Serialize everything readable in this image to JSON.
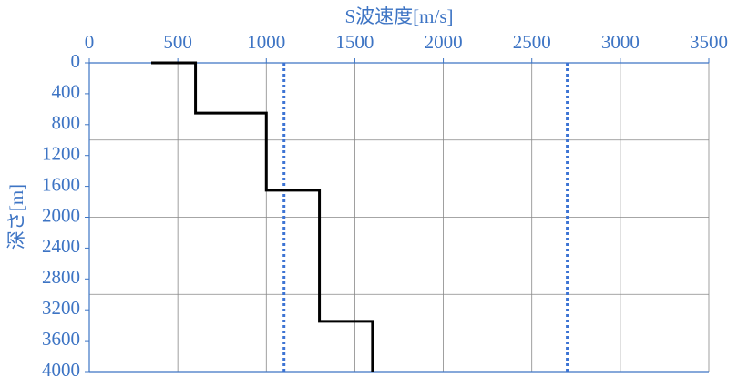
{
  "chart_data": {
    "type": "line",
    "title": "S波速度[m/s]",
    "y_label": "深さ[m]",
    "x": [
      350,
      600,
      600,
      1000,
      1000,
      1300,
      1300,
      1600,
      1600
    ],
    "series": [
      {
        "color": "#000000",
        "values": [
          0,
          0,
          650,
          650,
          1650,
          1650,
          3350,
          3350,
          4000
        ]
      }
    ],
    "xlim": [
      0,
      3500
    ],
    "xticks": [
      0,
      500,
      1000,
      1500,
      2000,
      2500,
      3000,
      3500
    ],
    "ylim": [
      0,
      4000
    ],
    "y_inverted": true,
    "yticks": [
      0,
      400,
      800,
      1200,
      1600,
      2000,
      2400,
      2800,
      3200,
      3600,
      4000
    ],
    "ygrid": [
      1000,
      2000,
      3000
    ],
    "xgrid": true,
    "vlines": [
      1100,
      2700
    ],
    "vline_color": "#3d74d4",
    "vline_style": "dotted",
    "axis_color": "#3d74c4",
    "grid_color": "#888888"
  }
}
